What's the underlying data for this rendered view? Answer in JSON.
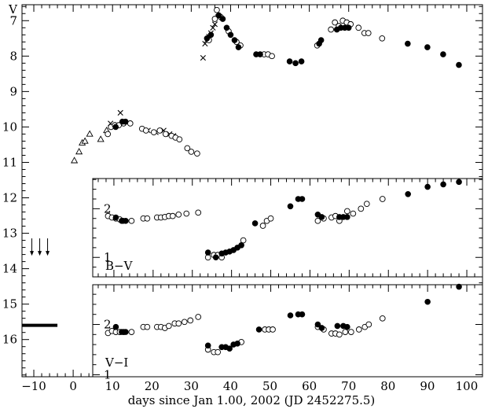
{
  "chart_data": [
    {
      "id": "v",
      "type": "scatter",
      "ylabel": "V",
      "xlim": [
        -13,
        104
      ],
      "ylim": [
        17.05,
        6.55
      ],
      "y_reversed": true,
      "yticks": [
        7,
        8,
        9,
        10,
        11,
        12,
        13,
        14,
        15,
        16
      ],
      "series": [
        {
          "marker": "open-triangle",
          "points": [
            [
              0.3,
              10.95
            ],
            [
              1.5,
              10.7
            ],
            [
              2.3,
              10.45
            ],
            [
              3.0,
              10.4
            ],
            [
              4.2,
              10.2
            ],
            [
              7.0,
              10.35
            ],
            [
              8.5,
              10.1
            ]
          ]
        },
        {
          "marker": "cross",
          "points": [
            [
              9.5,
              9.9
            ],
            [
              12.0,
              9.6
            ],
            [
              19.0,
              10.1
            ],
            [
              21.0,
              10.15
            ],
            [
              23.0,
              10.1
            ],
            [
              24.5,
              10.2
            ],
            [
              25.5,
              10.25
            ],
            [
              33.0,
              8.05
            ],
            [
              33.5,
              7.65
            ],
            [
              34.0,
              7.55
            ],
            [
              34.5,
              7.45
            ],
            [
              35.0,
              7.35
            ],
            [
              35.5,
              7.2
            ],
            [
              36.0,
              7.1
            ],
            [
              36.8,
              6.9
            ]
          ]
        },
        {
          "marker": "open-circle",
          "points": [
            [
              8.8,
              10.2
            ],
            [
              9.6,
              10.0
            ],
            [
              10.6,
              9.95
            ],
            [
              11.6,
              9.95
            ],
            [
              12.8,
              9.9
            ],
            [
              14.5,
              9.9
            ],
            [
              17.5,
              10.05
            ],
            [
              18.5,
              10.1
            ],
            [
              20.5,
              10.15
            ],
            [
              22.0,
              10.1
            ],
            [
              23.5,
              10.2
            ],
            [
              25.0,
              10.25
            ],
            [
              26.0,
              10.3
            ],
            [
              27.0,
              10.35
            ],
            [
              29.0,
              10.6
            ],
            [
              30.0,
              10.7
            ],
            [
              31.5,
              10.75
            ],
            [
              34.5,
              7.55
            ],
            [
              36.0,
              6.95
            ],
            [
              36.5,
              6.7
            ],
            [
              37.5,
              6.9
            ],
            [
              39.5,
              7.3
            ],
            [
              41.5,
              7.6
            ],
            [
              42.5,
              7.7
            ],
            [
              48.5,
              7.95
            ],
            [
              49.5,
              7.95
            ],
            [
              50.5,
              8.0
            ],
            [
              62.0,
              7.7
            ],
            [
              65.5,
              7.25
            ],
            [
              66.5,
              7.05
            ],
            [
              67.5,
              7.15
            ],
            [
              68.5,
              7.0
            ],
            [
              69.5,
              7.05
            ],
            [
              70.5,
              7.1
            ],
            [
              72.5,
              7.2
            ],
            [
              74.0,
              7.35
            ],
            [
              75.0,
              7.35
            ],
            [
              78.5,
              7.5
            ]
          ]
        },
        {
          "marker": "filled-circle",
          "points": [
            [
              10.8,
              10.0
            ],
            [
              12.5,
              9.85
            ],
            [
              13.3,
              9.85
            ],
            [
              34.0,
              7.5
            ],
            [
              35.0,
              7.4
            ],
            [
              37.0,
              6.85
            ],
            [
              38.0,
              6.95
            ],
            [
              39.0,
              7.2
            ],
            [
              40.0,
              7.4
            ],
            [
              41.0,
              7.55
            ],
            [
              42.0,
              7.75
            ],
            [
              46.5,
              7.95
            ],
            [
              47.5,
              7.95
            ],
            [
              55.0,
              8.15
            ],
            [
              56.5,
              8.2
            ],
            [
              58.0,
              8.15
            ],
            [
              62.5,
              7.65
            ],
            [
              63.0,
              7.55
            ],
            [
              67.0,
              7.25
            ],
            [
              68.0,
              7.2
            ],
            [
              69.0,
              7.2
            ],
            [
              70.0,
              7.2
            ],
            [
              85.0,
              7.65
            ],
            [
              90.0,
              7.75
            ],
            [
              94.0,
              7.95
            ],
            [
              98.0,
              8.25
            ]
          ]
        }
      ],
      "arrows": [
        {
          "x": -10.5,
          "y": 13.5
        },
        {
          "x": -8.5,
          "y": 13.5
        },
        {
          "x": -6.5,
          "y": 13.5
        }
      ],
      "reference_bar": {
        "x": [
          -13,
          -4
        ],
        "y": 15.6
      }
    },
    {
      "id": "bv",
      "type": "scatter",
      "label": "B−V",
      "xlim": [
        4.6,
        104
      ],
      "ylim": [
        0.6,
        2.62
      ],
      "yticks": [
        1,
        2
      ],
      "series": [
        {
          "marker": "open-circle",
          "points": [
            [
              8.5,
              1.85
            ],
            [
              9.5,
              1.82
            ],
            [
              10.5,
              1.8
            ],
            [
              11.5,
              1.78
            ],
            [
              12.3,
              1.75
            ],
            [
              14.5,
              1.75
            ],
            [
              17.5,
              1.8
            ],
            [
              18.5,
              1.8
            ],
            [
              21.0,
              1.82
            ],
            [
              22.0,
              1.82
            ],
            [
              23.0,
              1.83
            ],
            [
              24.0,
              1.85
            ],
            [
              25.0,
              1.85
            ],
            [
              26.5,
              1.88
            ],
            [
              28.5,
              1.9
            ],
            [
              31.5,
              1.92
            ],
            [
              34.0,
              1.0
            ],
            [
              35.5,
              1.05
            ],
            [
              36.5,
              1.05
            ],
            [
              37.5,
              1.0
            ],
            [
              43.0,
              1.35
            ],
            [
              48.0,
              1.65
            ],
            [
              49.0,
              1.75
            ],
            [
              50.0,
              1.8
            ],
            [
              62.0,
              1.75
            ],
            [
              63.5,
              1.8
            ],
            [
              65.5,
              1.82
            ],
            [
              66.5,
              1.85
            ],
            [
              67.5,
              1.75
            ],
            [
              69.5,
              1.95
            ],
            [
              71.0,
              1.9
            ],
            [
              73.0,
              2.0
            ],
            [
              74.5,
              2.1
            ],
            [
              78.5,
              2.2
            ]
          ]
        },
        {
          "marker": "filled-circle",
          "points": [
            [
              10.5,
              1.82
            ],
            [
              12.0,
              1.75
            ],
            [
              13.0,
              1.75
            ],
            [
              34.0,
              1.1
            ],
            [
              36.0,
              1.0
            ],
            [
              37.5,
              1.08
            ],
            [
              38.5,
              1.1
            ],
            [
              39.5,
              1.12
            ],
            [
              40.5,
              1.15
            ],
            [
              41.5,
              1.2
            ],
            [
              42.5,
              1.25
            ],
            [
              46.0,
              1.7
            ],
            [
              55.0,
              2.05
            ],
            [
              57.0,
              2.2
            ],
            [
              58.0,
              2.2
            ],
            [
              62.0,
              1.88
            ],
            [
              63.0,
              1.83
            ],
            [
              67.5,
              1.83
            ],
            [
              68.5,
              1.83
            ],
            [
              69.5,
              1.83
            ],
            [
              85.0,
              2.3
            ],
            [
              90.0,
              2.45
            ],
            [
              94.0,
              2.5
            ],
            [
              98.0,
              2.55
            ]
          ]
        }
      ]
    },
    {
      "id": "vi",
      "type": "scatter",
      "label": "V−I",
      "xlim": [
        4.6,
        104
      ],
      "ylim": [
        0.96,
        2.79
      ],
      "yticks": [
        1,
        2
      ],
      "series": [
        {
          "marker": "open-circle",
          "points": [
            [
              8.5,
              1.83
            ],
            [
              9.5,
              1.87
            ],
            [
              10.5,
              1.85
            ],
            [
              11.5,
              1.85
            ],
            [
              12.5,
              1.85
            ],
            [
              14.5,
              1.85
            ],
            [
              17.5,
              1.95
            ],
            [
              18.5,
              1.95
            ],
            [
              21.0,
              1.95
            ],
            [
              22.0,
              1.95
            ],
            [
              23.0,
              1.93
            ],
            [
              24.0,
              1.97
            ],
            [
              25.5,
              2.02
            ],
            [
              26.5,
              2.02
            ],
            [
              28.0,
              2.05
            ],
            [
              29.5,
              2.08
            ],
            [
              31.5,
              2.15
            ],
            [
              34.0,
              1.5
            ],
            [
              35.5,
              1.45
            ],
            [
              36.5,
              1.45
            ],
            [
              42.5,
              1.65
            ],
            [
              48.5,
              1.9
            ],
            [
              49.5,
              1.9
            ],
            [
              50.5,
              1.9
            ],
            [
              62.0,
              1.95
            ],
            [
              63.5,
              1.9
            ],
            [
              65.5,
              1.82
            ],
            [
              66.5,
              1.82
            ],
            [
              67.5,
              1.8
            ],
            [
              69.0,
              1.85
            ],
            [
              70.5,
              1.85
            ],
            [
              72.5,
              1.9
            ],
            [
              74.0,
              1.95
            ],
            [
              75.0,
              2.0
            ],
            [
              78.5,
              2.12
            ]
          ]
        },
        {
          "marker": "filled-circle",
          "points": [
            [
              10.5,
              1.95
            ],
            [
              12.0,
              1.85
            ],
            [
              13.0,
              1.85
            ],
            [
              34.0,
              1.58
            ],
            [
              37.5,
              1.55
            ],
            [
              38.5,
              1.55
            ],
            [
              39.5,
              1.52
            ],
            [
              40.5,
              1.6
            ],
            [
              41.5,
              1.62
            ],
            [
              47.0,
              1.9
            ],
            [
              55.0,
              2.18
            ],
            [
              57.0,
              2.2
            ],
            [
              58.0,
              2.2
            ],
            [
              62.0,
              2.0
            ],
            [
              63.0,
              1.93
            ],
            [
              67.0,
              1.97
            ],
            [
              68.5,
              1.97
            ],
            [
              69.5,
              1.95
            ],
            [
              90.0,
              2.45
            ],
            [
              98.0,
              2.75
            ]
          ]
        }
      ]
    }
  ],
  "x_axis": {
    "label": "days since Jan 1.00, 2002     (JD 2452275.5)",
    "ticks": [
      -10,
      0,
      10,
      20,
      30,
      40,
      50,
      60,
      70,
      80,
      90,
      100
    ],
    "minor_step": 2
  }
}
